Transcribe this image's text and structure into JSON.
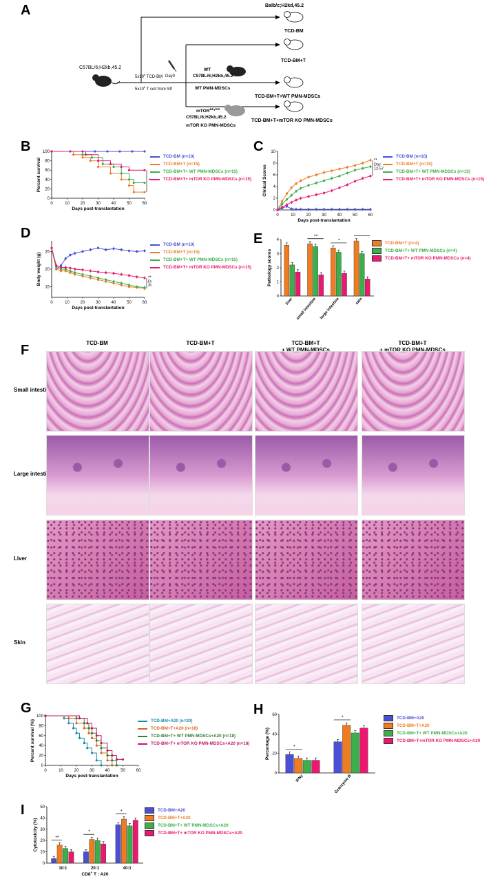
{
  "panels": {
    "A": "A",
    "B": "B",
    "C": "C",
    "D": "D",
    "E": "E",
    "F": "F",
    "G": "G",
    "H": "H",
    "I": "I"
  },
  "schematic": {
    "donor": "C57BL/6;H2kb,45.2",
    "recipient_top": "Balb/c;H2kd,45.2",
    "tcd_bm_dose_pre": "5x10",
    "tcd_bm_dose_sup": "6",
    "tcd_bm_dose_post": " TCD-BM",
    "t_cell_pre": "5x10",
    "t_cell_sup": "5",
    "t_cell_post": " T cell from SP",
    "day0": "Day0",
    "wt_label": "WT",
    "wt_strain": "C57BL/6;H2kb,45.2",
    "wt_mdsc": "WT PMN-MDSCs",
    "mtor_label": "mTOR",
    "mtor_sup": "ΔLysm",
    "mtor_strain": "C57BL/6;H2kb,45.2",
    "mtor_mdsc": "mTOR KO PMN-MDSCs",
    "out1": "TCD-BM",
    "out2": "TCD-BM+T",
    "out3": "TCD-BM+T+WT PMN-MDSCs",
    "out4": "TCD-BM+T+mTOR  KO PMN-MDSCs"
  },
  "colors": {
    "blue": "#4a4fd6",
    "orange": "#f07c22",
    "green": "#3cae4a",
    "pink": "#e8196e"
  },
  "B": {
    "chart_data": {
      "type": "line",
      "ylabel": "Percent survival",
      "xlabel": "Days post-translantation",
      "xticks": [
        0,
        10,
        20,
        30,
        40,
        50,
        60
      ],
      "yticks": [
        0,
        20,
        40,
        60,
        80,
        100
      ],
      "ylim": [
        0,
        100
      ],
      "xlim": [
        0,
        60
      ],
      "series": [
        {
          "name": "TCD-BM (n=10)",
          "color": "#4a4fd6",
          "x": [
            0,
            12,
            20,
            28,
            36,
            44,
            52,
            60
          ],
          "y": [
            100,
            100,
            100,
            100,
            100,
            100,
            100,
            100
          ]
        },
        {
          "name": "TCD-BM+T (n=15)",
          "color": "#f07c22",
          "x": [
            0,
            14,
            20,
            25,
            30,
            38,
            45,
            50,
            53,
            60
          ],
          "y": [
            100,
            93,
            87,
            80,
            67,
            53,
            40,
            27,
            13,
            13
          ]
        },
        {
          "name": "TCD-BM+T+ WT PMN-MDSCs (n=15)",
          "color": "#3cae4a",
          "x": [
            0,
            20,
            26,
            33,
            40,
            45,
            50,
            53,
            60
          ],
          "y": [
            100,
            93,
            87,
            73,
            67,
            53,
            40,
            33,
            33
          ]
        },
        {
          "name": "TCD-BM+T+ mTOR KO PMN-MDSCs (n=15)",
          "color": "#e8196e",
          "x": [
            0,
            22,
            30,
            38,
            45,
            50,
            60
          ],
          "y": [
            100,
            93,
            80,
            73,
            67,
            60,
            60
          ]
        }
      ],
      "annotation": "*"
    }
  },
  "C": {
    "chart_data": {
      "type": "line",
      "ylabel": "Clinical Scores",
      "xlabel": "Days post-translantation",
      "xticks": [
        0,
        10,
        20,
        30,
        40,
        50,
        60
      ],
      "yticks": [
        0,
        2,
        4,
        6,
        8,
        10
      ],
      "ylim": [
        0,
        10
      ],
      "xlim": [
        0,
        60
      ],
      "series": [
        {
          "name": "TCD-BM (n=10)",
          "color": "#4a4fd6",
          "x": [
            0,
            3,
            6,
            9,
            12,
            15,
            20,
            25,
            30,
            35,
            40,
            45,
            50,
            55,
            60
          ],
          "y": [
            0,
            0.3,
            0.6,
            0.2,
            0.1,
            0.1,
            0.1,
            0.1,
            0.1,
            0.1,
            0.1,
            0.1,
            0.1,
            0.1,
            0.1
          ]
        },
        {
          "name": "TCD-BM+T (n=15)",
          "color": "#f07c22",
          "x": [
            0,
            3,
            6,
            9,
            12,
            15,
            20,
            25,
            30,
            35,
            40,
            45,
            50,
            55,
            60
          ],
          "y": [
            0,
            1.5,
            2.8,
            3.8,
            4.5,
            5.0,
            5.6,
            6.0,
            6.4,
            6.7,
            7.0,
            7.3,
            7.6,
            8.0,
            8.5
          ]
        },
        {
          "name": "TCD-BM+T+ WT PMN-MDSCs (n=15)",
          "color": "#3cae4a",
          "x": [
            0,
            3,
            6,
            9,
            12,
            15,
            20,
            25,
            30,
            35,
            40,
            45,
            50,
            55,
            60
          ],
          "y": [
            0,
            1.0,
            1.8,
            2.5,
            3.2,
            3.7,
            4.2,
            4.6,
            5.0,
            5.4,
            5.8,
            6.3,
            6.8,
            7.1,
            7.4
          ]
        },
        {
          "name": "TCD-BM+T+ mTOR KO PMN-MDSCs (n=15)",
          "color": "#e8196e",
          "x": [
            0,
            3,
            6,
            9,
            12,
            15,
            20,
            25,
            30,
            35,
            40,
            45,
            50,
            55,
            60
          ],
          "y": [
            0,
            0.5,
            0.9,
            1.3,
            1.7,
            2.0,
            2.3,
            2.6,
            2.9,
            3.3,
            3.8,
            4.3,
            4.9,
            5.4,
            5.8
          ]
        }
      ],
      "annotation": "**",
      "annotation2": "Day",
      "annotation3": "12-57"
    }
  },
  "D": {
    "chart_data": {
      "type": "line",
      "ylabel": "Body weight (g)",
      "xlabel": "Days post-translantation",
      "xticks": [
        0,
        10,
        20,
        30,
        40,
        50,
        60
      ],
      "yticks": [
        15,
        20,
        25
      ],
      "ylim": [
        12,
        28
      ],
      "xlim": [
        0,
        60
      ],
      "series": [
        {
          "name": "TCD-BM (n=10)",
          "color": "#4a4fd6",
          "x": [
            0,
            3,
            6,
            9,
            12,
            15,
            20,
            25,
            30,
            35,
            40,
            45,
            50,
            55,
            60
          ],
          "y": [
            26,
            20,
            21,
            23,
            24,
            24.5,
            25,
            25.5,
            26,
            25.5,
            25.8,
            25.5,
            25.2,
            25,
            25.2
          ]
        },
        {
          "name": "TCD-BM+T (n=15)",
          "color": "#f07c22",
          "x": [
            0,
            3,
            6,
            9,
            12,
            15,
            20,
            25,
            30,
            35,
            40,
            45,
            50,
            55,
            60
          ],
          "y": [
            26,
            20,
            19.5,
            19.5,
            19,
            18.5,
            18,
            17.5,
            17,
            16.5,
            16,
            15.5,
            15,
            14.8,
            14.5
          ]
        },
        {
          "name": "TCD-BM+T+ WT PMN-MDSCs (n=15)",
          "color": "#3cae4a",
          "x": [
            0,
            3,
            6,
            9,
            12,
            15,
            20,
            25,
            30,
            35,
            40,
            45,
            50,
            55,
            60
          ],
          "y": [
            26,
            20.5,
            20,
            20,
            19.5,
            19,
            18.5,
            18,
            17.5,
            17,
            16.5,
            16,
            15.5,
            15,
            14.8
          ]
        },
        {
          "name": "TCD-BM+T+ mTOR KO PMN-MDSCs (n=15)",
          "color": "#e8196e",
          "x": [
            0,
            3,
            6,
            9,
            12,
            15,
            20,
            25,
            30,
            35,
            40,
            45,
            50,
            55,
            60
          ],
          "y": [
            26,
            21,
            20.5,
            20.5,
            20.3,
            20,
            19.8,
            19.5,
            19.2,
            19,
            18.8,
            18.5,
            18.2,
            17.8,
            17.5
          ]
        }
      ],
      "annotation": "**",
      "annotation2": "Day",
      "annotation3": "39-54"
    }
  },
  "E": {
    "chart_data": {
      "type": "bar",
      "ylabel": "Pathology scores",
      "categories": [
        "liver",
        "small intestine",
        "large intestine",
        "skin"
      ],
      "yticks": [
        0,
        1,
        2,
        3,
        4
      ],
      "ylim": [
        0,
        4
      ],
      "series": [
        {
          "name": "TCD-BM+T (n=4)",
          "color": "#f07c22",
          "values": [
            3.6,
            3.7,
            3.4,
            3.9
          ]
        },
        {
          "name": "TCD-BM+T+ WT PMN-MDSCs (n=4)",
          "color": "#3cae4a",
          "values": [
            2.2,
            3.5,
            3.1,
            3.0
          ]
        },
        {
          "name": "TCD-BM+T+ mTOR KO PMN-MDSCs (n=4)",
          "color": "#e8196e",
          "values": [
            1.7,
            1.5,
            1.6,
            1.2
          ]
        }
      ],
      "sig": [
        "**",
        "*",
        "**"
      ]
    }
  },
  "F": {
    "cols": [
      "TCD-BM",
      "TCD-BM+T",
      "TCD-BM+T",
      "TCD-BM+T"
    ],
    "cols2": [
      "",
      "",
      "+ WT PMN-MDSCs",
      "+ mTOR KO PMN-MDSCs"
    ],
    "rows": [
      "Small intestine",
      "Large intestine",
      "Liver",
      "Skin"
    ]
  },
  "G": {
    "chart_data": {
      "type": "line",
      "ylabel": "Percent survival (%)",
      "xlabel": "Days post-translantation",
      "xticks": [
        0,
        10,
        20,
        30,
        40,
        50,
        60
      ],
      "yticks": [
        0,
        20,
        40,
        60,
        80,
        100
      ],
      "ylim": [
        0,
        100
      ],
      "xlim": [
        0,
        60
      ],
      "series": [
        {
          "name": "TCD-BM+A20 (n=20)",
          "color": "#1a8aa8",
          "x": [
            0,
            12,
            15,
            18,
            20,
            22,
            25,
            27,
            30,
            33,
            36
          ],
          "y": [
            100,
            95,
            85,
            75,
            65,
            55,
            45,
            35,
            25,
            10,
            0
          ]
        },
        {
          "name": "TCD-BM+T+A20 (n=18)",
          "color": "#d4661e",
          "x": [
            0,
            15,
            20,
            25,
            28,
            30,
            33,
            36,
            40,
            43
          ],
          "y": [
            100,
            95,
            85,
            75,
            65,
            55,
            40,
            25,
            10,
            0
          ]
        },
        {
          "name": "TCD-BM+T+ WT PMN-MDSCs+A20 (n=18)",
          "color": "#2e7d32",
          "x": [
            0,
            20,
            25,
            28,
            30,
            33,
            36,
            40,
            43,
            46
          ],
          "y": [
            100,
            95,
            85,
            75,
            65,
            50,
            35,
            20,
            10,
            0
          ]
        },
        {
          "name": "TCD-BM+T+ mTOR KO PMN-MDSCs+A20 (n=18)",
          "color": "#c2185b",
          "x": [
            0,
            22,
            27,
            30,
            33,
            36,
            40,
            43,
            46,
            50
          ],
          "y": [
            100,
            95,
            85,
            75,
            60,
            45,
            30,
            20,
            12,
            12
          ]
        }
      ]
    }
  },
  "H": {
    "chart_data": {
      "type": "bar",
      "ylabel": "Percentage (%)",
      "categories": [
        "IFNγ",
        "Granzyme B"
      ],
      "yticks": [
        0,
        20,
        40,
        60
      ],
      "ylim": [
        0,
        60
      ],
      "series": [
        {
          "name": "TCD-BM+A20",
          "color": "#4a4fd6",
          "values": [
            19,
            32
          ]
        },
        {
          "name": "TCD-BM+T+A20",
          "color": "#f07c22",
          "values": [
            15,
            49
          ]
        },
        {
          "name": "TCD-BM+T+ WT PMN-MDSCs+A20",
          "color": "#3cae4a",
          "values": [
            13,
            41
          ]
        },
        {
          "name": "TCD-BM+T+mTOR KO PMN-MDSCs+A20",
          "color": "#e8196e",
          "values": [
            13,
            46
          ]
        }
      ],
      "sig": [
        "*",
        "*"
      ]
    }
  },
  "I": {
    "chart_data": {
      "type": "bar",
      "ylabel": "Cytotoxicity (%)",
      "xlabel": "CD8",
      "xlabel_sup": "+",
      "xlabel_post": " T : A20",
      "categories": [
        "10:1",
        "20:1",
        "40:1"
      ],
      "yticks": [
        0,
        10,
        20,
        30,
        40,
        50
      ],
      "ylim": [
        0,
        50
      ],
      "series": [
        {
          "name": "TCD-BM+A20",
          "color": "#4a4fd6",
          "values": [
            4,
            10,
            34
          ]
        },
        {
          "name": "TCD-BM+T+A20",
          "color": "#f07c22",
          "values": [
            16,
            21,
            39
          ]
        },
        {
          "name": "TCD-BM+T+ WT PMN-MDSCs+A20",
          "color": "#3cae4a",
          "values": [
            13,
            20,
            33
          ]
        },
        {
          "name": "TCD-BM+T+ mTOR KO PMN-MDSCs+A20",
          "color": "#e8196e",
          "values": [
            10,
            17,
            38
          ]
        }
      ],
      "sig": [
        "**",
        "*",
        "*"
      ]
    }
  }
}
